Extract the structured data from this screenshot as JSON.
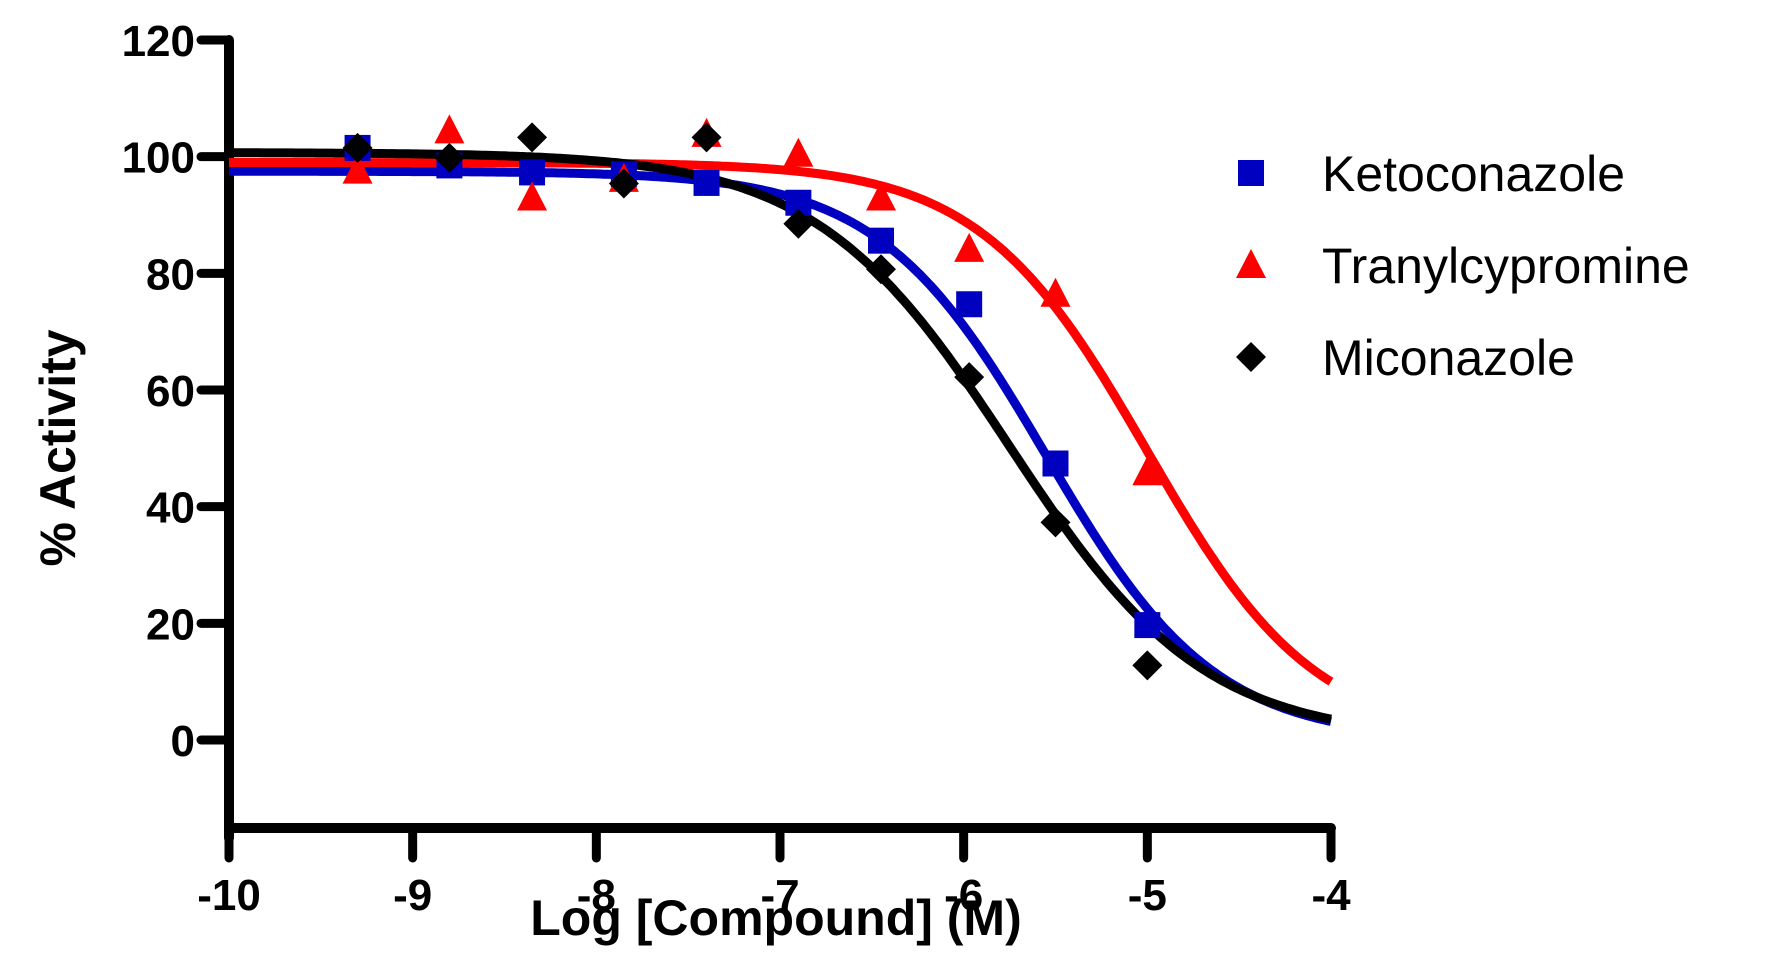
{
  "chart_data": {
    "type": "scatter",
    "title": "",
    "xlabel": "Log [Compound] (M)",
    "ylabel": "% Activity",
    "xlim": [
      -10,
      -4
    ],
    "ylim": [
      0,
      120
    ],
    "xticks": [
      -10,
      -9,
      -8,
      -7,
      -6,
      -5,
      -4
    ],
    "xtick_labels": [
      "-10",
      "-9",
      "-8",
      "-7",
      "-6",
      "-5",
      "-4"
    ],
    "yticks": [
      0,
      20,
      40,
      60,
      80,
      100,
      120
    ],
    "ytick_labels": [
      "0",
      "20",
      "40",
      "60",
      "80",
      "100",
      "120"
    ],
    "grid": false,
    "legend_position": "top-right",
    "fit": "four-parameter logistic (dose-response curve)",
    "series": [
      {
        "name": "Ketoconazole",
        "marker": "square",
        "color": "#0000C0",
        "x": [
          -9.3,
          -8.8,
          -8.35,
          -7.85,
          -7.4,
          -6.9,
          -6.45,
          -5.97,
          -5.5,
          -5.0
        ],
        "y": [
          101.5,
          98.5,
          97.3,
          97.0,
          95.5,
          92.1,
          85.6,
          74.7,
          47.4,
          19.7
        ],
        "fit": {
          "top": 97.5,
          "bottom": 0,
          "log_ic50": -5.55,
          "hill": 0.95
        }
      },
      {
        "name": "Tranylcypromine",
        "marker": "triangle",
        "color": "#FF0000",
        "x": [
          -9.3,
          -8.8,
          -8.35,
          -7.85,
          -7.4,
          -6.9,
          -6.45,
          -5.97,
          -5.5,
          -5.0
        ],
        "y": [
          97.6,
          104.5,
          93.0,
          96.2,
          103.9,
          100.5,
          93.0,
          84.2,
          76.5,
          45.9
        ],
        "fit": {
          "top": 99.0,
          "bottom": 0,
          "log_ic50": -5.0,
          "hill": 0.95
        }
      },
      {
        "name": "Miconazole",
        "marker": "diamond",
        "color": "#000000",
        "x": [
          -9.3,
          -8.8,
          -8.35,
          -7.85,
          -7.4,
          -6.9,
          -6.45,
          -5.97,
          -5.5,
          -5.0
        ],
        "y": [
          101.5,
          99.8,
          103.3,
          95.4,
          103.3,
          88.5,
          80.7,
          62.2,
          37.3,
          12.8
        ],
        "fit": {
          "top": 100.7,
          "bottom": 0,
          "log_ic50": -5.75,
          "hill": 0.82
        }
      }
    ]
  }
}
